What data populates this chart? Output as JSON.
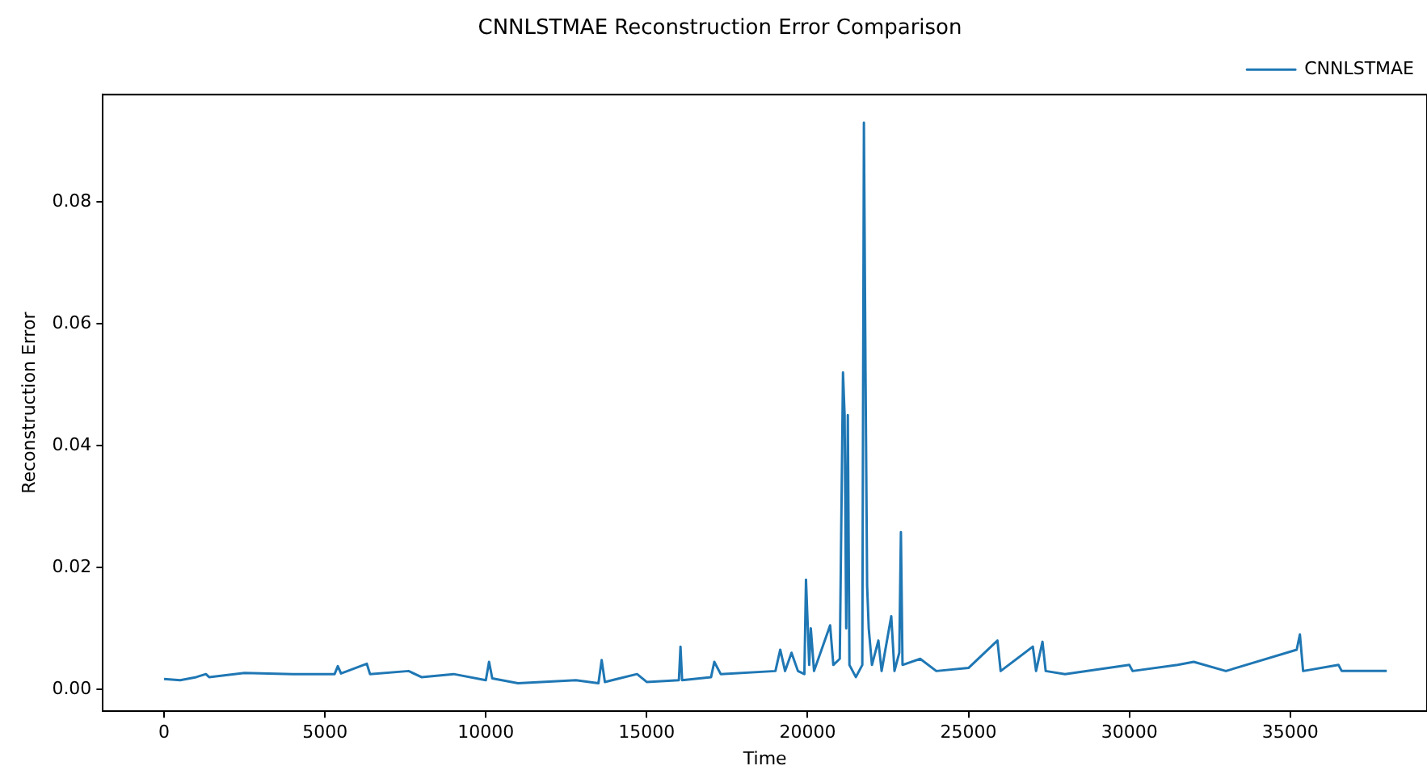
{
  "chart_data": {
    "type": "line",
    "title": "CNNLSTMAE Reconstruction Error Comparison",
    "xlabel": "Time",
    "ylabel": "Reconstruction Error",
    "xlim": [
      -1900,
      39250
    ],
    "xticks": [
      0,
      5000,
      10000,
      15000,
      20000,
      25000,
      30000,
      35000
    ],
    "ylim": [
      -0.0036,
      0.0976
    ],
    "yticks": [
      {
        "value": 0,
        "label": "0.00"
      },
      {
        "value": 0.02,
        "label": "0.02"
      },
      {
        "value": 0.04,
        "label": "0.04"
      },
      {
        "value": 0.06,
        "label": "0.06"
      },
      {
        "value": 0.08,
        "label": "0.08"
      }
    ],
    "legend": "top right",
    "grid": false,
    "marker": "none",
    "line_style": "solid",
    "series": [
      {
        "name": "CNNLSTMAE",
        "color": "#1f77b4",
        "x": [
          0,
          500,
          1000,
          1300,
          1400,
          2500,
          4000,
          5300,
          5400,
          5500,
          6300,
          6400,
          7600,
          8000,
          9000,
          10000,
          10100,
          10200,
          11000,
          12800,
          13500,
          13600,
          13700,
          14700,
          15000,
          16000,
          16050,
          16100,
          17000,
          17100,
          17300,
          19000,
          19150,
          19300,
          19500,
          19700,
          19900,
          19950,
          20050,
          20100,
          20200,
          20700,
          20800,
          21000,
          21100,
          21150,
          21200,
          21250,
          21300,
          21500,
          21700,
          21750,
          21800,
          21850,
          21900,
          22000,
          22200,
          22300,
          22600,
          22700,
          22850,
          22900,
          22950,
          23500,
          24000,
          25000,
          25900,
          26000,
          27000,
          27100,
          27300,
          27400,
          28000,
          30000,
          30100,
          31500,
          32000,
          33000,
          35200,
          35300,
          35400,
          36500,
          36600,
          38000
        ],
        "values": [
          0.0017,
          0.0015,
          0.002,
          0.0025,
          0.002,
          0.0027,
          0.0025,
          0.0025,
          0.0038,
          0.0026,
          0.0042,
          0.0025,
          0.003,
          0.002,
          0.0025,
          0.0015,
          0.0045,
          0.0018,
          0.001,
          0.0015,
          0.001,
          0.0048,
          0.0012,
          0.0025,
          0.0012,
          0.0015,
          0.007,
          0.0015,
          0.002,
          0.0045,
          0.0025,
          0.003,
          0.0065,
          0.003,
          0.006,
          0.003,
          0.0025,
          0.018,
          0.004,
          0.01,
          0.003,
          0.0105,
          0.004,
          0.005,
          0.052,
          0.045,
          0.01,
          0.045,
          0.004,
          0.002,
          0.004,
          0.093,
          0.052,
          0.017,
          0.01,
          0.004,
          0.008,
          0.003,
          0.012,
          0.003,
          0.006,
          0.0258,
          0.004,
          0.005,
          0.003,
          0.0035,
          0.008,
          0.003,
          0.007,
          0.003,
          0.0078,
          0.003,
          0.0025,
          0.004,
          0.003,
          0.004,
          0.0045,
          0.003,
          0.0065,
          0.009,
          0.003,
          0.004,
          0.003,
          0.003
        ]
      }
    ]
  }
}
